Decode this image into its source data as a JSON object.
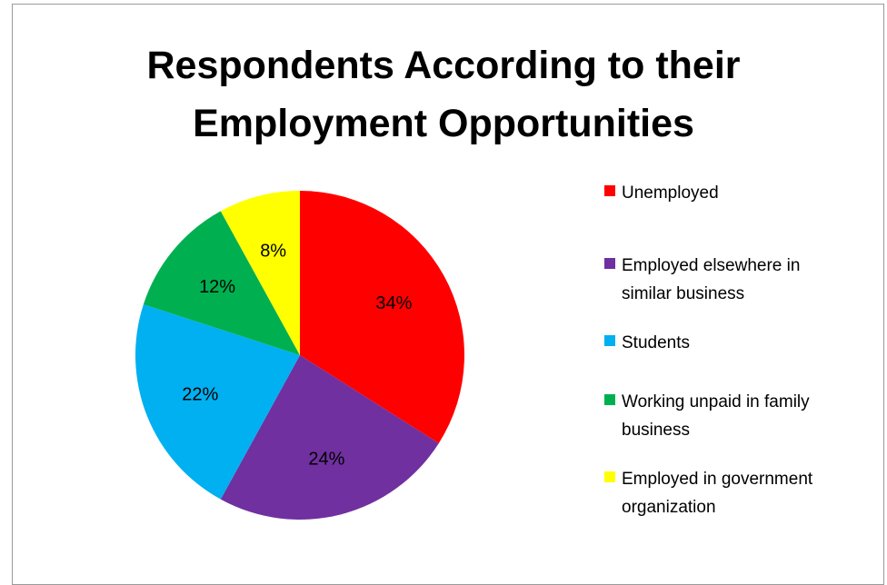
{
  "chart_data": {
    "type": "pie",
    "title": "Respondents According to their Employment Opportunities",
    "title_lines": [
      "Respondents According to their",
      "Employment Opportunities"
    ],
    "labels": [
      "Unemployed",
      "Employed elsewhere in similar business",
      "Students",
      "Working unpaid in family business",
      "Employed in government organization"
    ],
    "legend_lines": [
      [
        "Unemployed"
      ],
      [
        "Employed elsewhere in",
        "similar business"
      ],
      [
        "Students"
      ],
      [
        "Working unpaid in family",
        "business"
      ],
      [
        "Employed in government",
        "organization"
      ]
    ],
    "values": [
      34,
      24,
      22,
      12,
      8
    ],
    "value_labels": [
      "34%",
      "24%",
      "22%",
      "12%",
      "8%"
    ],
    "colors": [
      "#ff0000",
      "#7030a0",
      "#00b0f0",
      "#00b050",
      "#ffff00"
    ],
    "start_angle": "12 o'clock",
    "direction": "clockwise",
    "legend_position": "right"
  }
}
